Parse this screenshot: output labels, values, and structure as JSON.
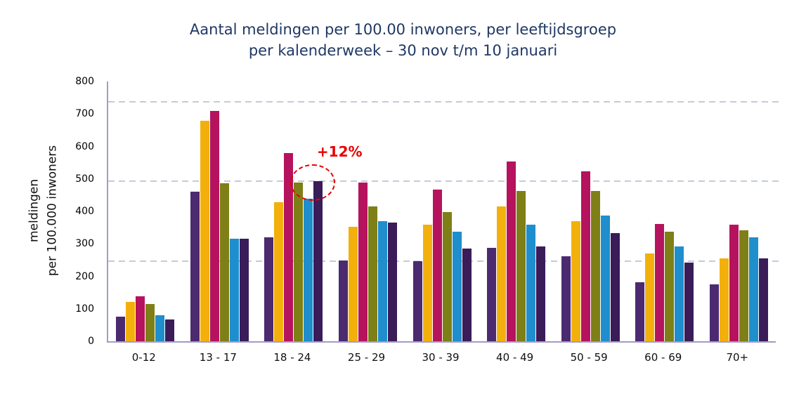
{
  "chart_data": {
    "type": "bar",
    "title": "Aantal meldingen per 100.00 inwoners, per leeftijdsgroep per kalenderweek – 30 nov t/m 10 januari",
    "title_lines": [
      "Aantal meldingen per 100.00 inwoners, per leeftijdsgroep",
      "per kalenderweek – 30 nov t/m 10 januari"
    ],
    "ylabel": "meldingen per 100.000 inwoners",
    "ylabel_lines": [
      "meldingen",
      "per 100.000 inwoners"
    ],
    "xlabel": "",
    "ylim": [
      0,
      800
    ],
    "yticks": [
      0,
      100,
      200,
      300,
      400,
      500,
      600,
      700,
      800
    ],
    "gridlines": [
      245,
      490,
      735
    ],
    "grid_style": "dashed",
    "legend_position": "none",
    "categories": [
      "0-12",
      "13 - 17",
      "18 - 24",
      "25 - 29",
      "30 - 39",
      "40 - 49",
      "50 - 59",
      "60 - 69",
      "70+"
    ],
    "series": [
      {
        "name": "series-1",
        "color": "#4B2A70",
        "values": [
          75,
          460,
          320,
          248,
          247,
          288,
          262,
          182,
          175
        ]
      },
      {
        "name": "series-2",
        "color": "#F3B00C",
        "values": [
          122,
          680,
          428,
          353,
          358,
          415,
          370,
          270,
          255
        ]
      },
      {
        "name": "series-3",
        "color": "#B5135E",
        "values": [
          138,
          710,
          580,
          488,
          468,
          553,
          523,
          362,
          358
        ]
      },
      {
        "name": "series-4",
        "color": "#7E7F16",
        "values": [
          115,
          487,
          488,
          415,
          397,
          463,
          463,
          337,
          342
        ]
      },
      {
        "name": "series-5",
        "color": "#1F8ECD",
        "values": [
          80,
          316,
          440,
          370,
          337,
          358,
          388,
          292,
          320
        ]
      },
      {
        "name": "series-6",
        "color": "#3A1C59",
        "values": [
          68,
          315,
          493,
          365,
          285,
          292,
          332,
          242,
          255
        ]
      }
    ],
    "annotation": {
      "label": "+12%",
      "group_index": 2,
      "series_index": 5
    }
  },
  "colors": {
    "title": "#1F3864",
    "axis": "#A39BC8",
    "gridline": "#C3CCD9",
    "annotation": "#E90000",
    "background": "#FFFFFF"
  }
}
